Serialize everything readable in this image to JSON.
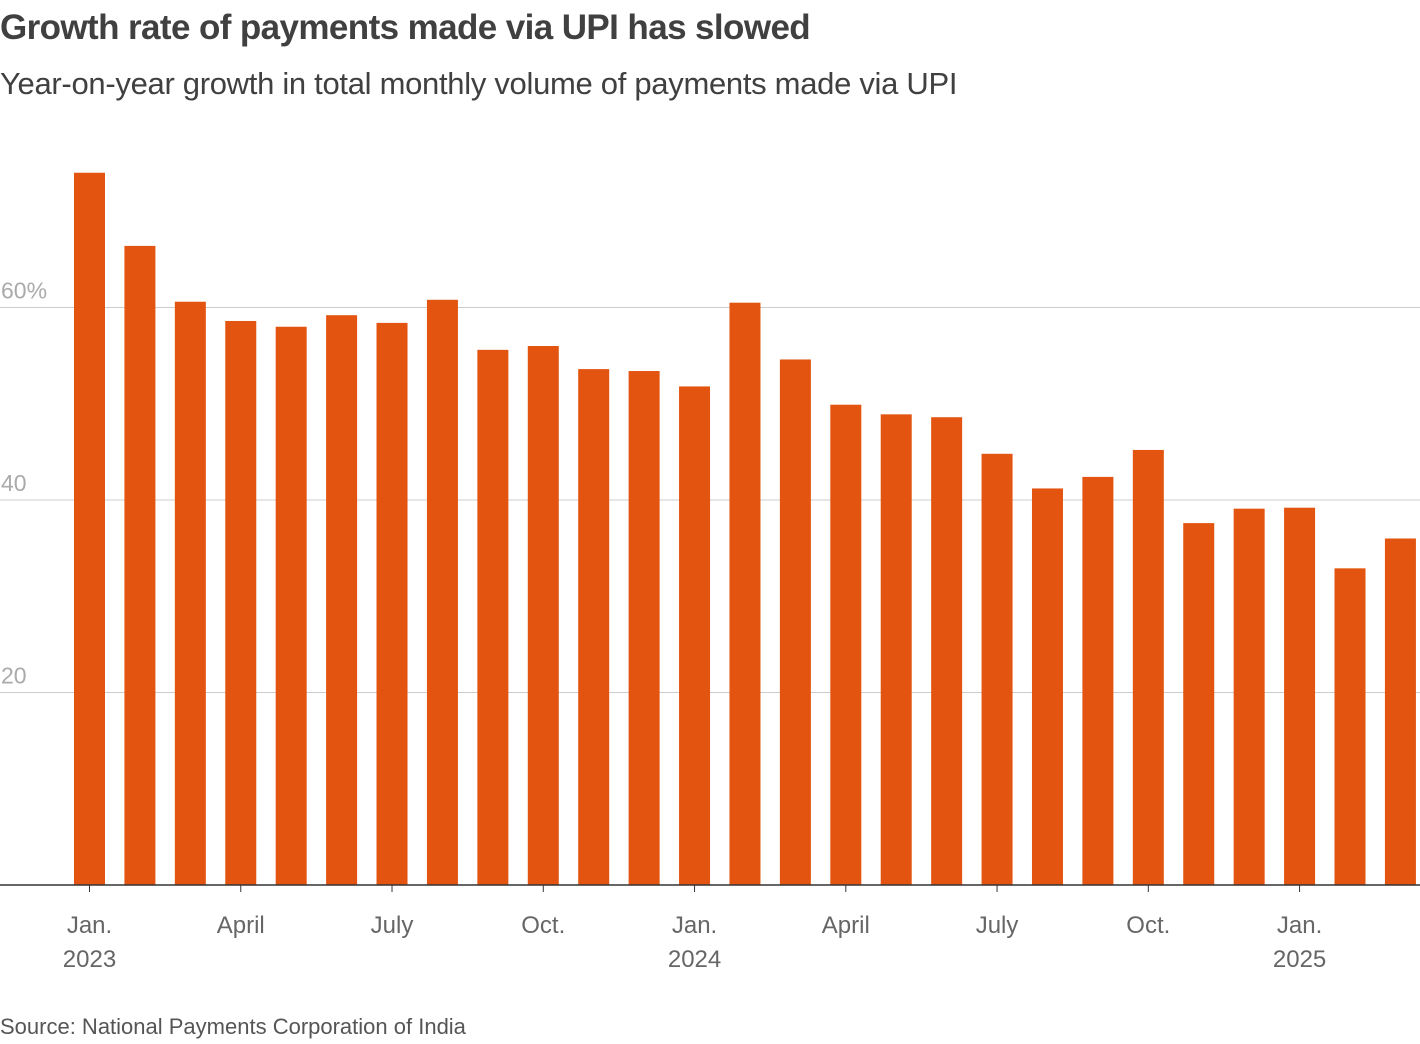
{
  "title": "Growth rate of payments made via UPI has slowed",
  "subtitle": "Year-on-year growth in total monthly volume of payments made via UPI",
  "source": "Source: National Payments Corporation of India",
  "colors": {
    "bar": "#e35410",
    "grid": "#cccccc",
    "axis": "#333333",
    "tick_label": "#666666",
    "y_label": "#aaaaaa"
  },
  "chart_data": {
    "type": "bar",
    "ylim": [
      0,
      74
    ],
    "grid": true,
    "yticks": [
      {
        "value": 20,
        "label": "20"
      },
      {
        "value": 40,
        "label": "40"
      },
      {
        "value": 60,
        "label": "60%"
      }
    ],
    "categories": [
      "Jan. 2023",
      "Feb. 2023",
      "Mar. 2023",
      "Apr. 2023",
      "May 2023",
      "Jun. 2023",
      "Jul. 2023",
      "Aug. 2023",
      "Sep. 2023",
      "Oct. 2023",
      "Nov. 2023",
      "Dec. 2023",
      "Jan. 2024",
      "Feb. 2024",
      "Mar. 2024",
      "Apr. 2024",
      "May 2024",
      "Jun. 2024",
      "Jul. 2024",
      "Aug. 2024",
      "Sep. 2024",
      "Oct. 2024",
      "Nov. 2024",
      "Dec. 2024",
      "Jan. 2025",
      "Feb. 2025",
      "Mar. 2025"
    ],
    "values": [
      74,
      66.4,
      60.6,
      58.6,
      58,
      59.2,
      58.4,
      60.8,
      55.6,
      56,
      53.6,
      53.4,
      51.8,
      60.5,
      54.6,
      49.9,
      48.9,
      48.6,
      44.8,
      41.2,
      42.4,
      45.2,
      37.6,
      39.1,
      39.2,
      32.9,
      36
    ],
    "xticks": [
      {
        "index": 0,
        "line1": "Jan.",
        "line2": "2023"
      },
      {
        "index": 3,
        "line1": "April",
        "line2": ""
      },
      {
        "index": 6,
        "line1": "July",
        "line2": ""
      },
      {
        "index": 9,
        "line1": "Oct.",
        "line2": ""
      },
      {
        "index": 12,
        "line1": "Jan.",
        "line2": "2024"
      },
      {
        "index": 15,
        "line1": "April",
        "line2": ""
      },
      {
        "index": 18,
        "line1": "July",
        "line2": ""
      },
      {
        "index": 21,
        "line1": "Oct.",
        "line2": ""
      },
      {
        "index": 24,
        "line1": "Jan.",
        "line2": "2025"
      }
    ]
  }
}
